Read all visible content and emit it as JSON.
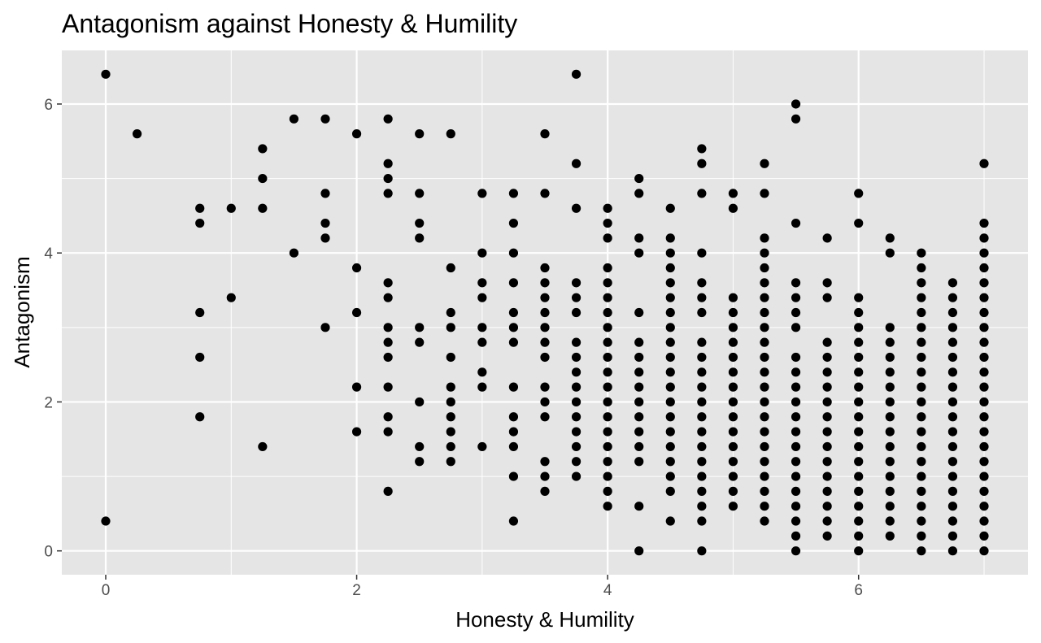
{
  "chart_data": {
    "type": "scatter",
    "title": "Antagonism against Honesty & Humility",
    "xlabel": "Honesty & Humility",
    "ylabel": "Antagonism",
    "xlim": [
      -0.35,
      7.35
    ],
    "ylim": [
      -0.32,
      6.72
    ],
    "x_ticks": [
      0,
      2,
      4,
      6
    ],
    "y_ticks": [
      0,
      2,
      4,
      6
    ],
    "x_tick_labels": [
      "0",
      "2",
      "4",
      "6"
    ],
    "y_tick_labels": [
      "0",
      "2",
      "4",
      "6"
    ],
    "grid": true,
    "colors": {
      "panel": "#e5e5e5",
      "grid": "#ffffff",
      "point": "#000000",
      "tick_text": "#4d4d4d"
    },
    "columns": [
      {
        "x": 0,
        "y": [
          0.4,
          6.4
        ]
      },
      {
        "x": 0.25,
        "y": [
          5.6
        ]
      },
      {
        "x": 0.75,
        "y": [
          1.8,
          2.6,
          3.2,
          4.4,
          4.6
        ]
      },
      {
        "x": 1,
        "y": [
          3.4,
          4.6
        ]
      },
      {
        "x": 1.25,
        "y": [
          1.4,
          4.6,
          5.0,
          5.4
        ]
      },
      {
        "x": 1.5,
        "y": [
          4.0,
          5.8
        ]
      },
      {
        "x": 1.75,
        "y": [
          3.0,
          4.2,
          4.4,
          4.8,
          5.8
        ]
      },
      {
        "x": 2,
        "y": [
          1.6,
          2.2,
          3.2,
          3.8,
          5.6
        ]
      },
      {
        "x": 2.25,
        "y": [
          0.8,
          1.6,
          1.8,
          2.2,
          2.6,
          2.8,
          3.0,
          3.4,
          3.6,
          4.8,
          5.0,
          5.2,
          5.8
        ]
      },
      {
        "x": 2.5,
        "y": [
          1.2,
          1.4,
          2.0,
          2.8,
          3.0,
          4.2,
          4.4,
          4.8,
          5.6
        ]
      },
      {
        "x": 2.75,
        "y": [
          1.2,
          1.4,
          1.6,
          1.8,
          2.0,
          2.2,
          2.6,
          3.0,
          3.2,
          3.8,
          5.6
        ]
      },
      {
        "x": 3,
        "y": [
          1.4,
          2.2,
          2.4,
          2.8,
          3.0,
          3.4,
          3.6,
          4.0,
          4.8
        ]
      },
      {
        "x": 3.25,
        "y": [
          0.4,
          1.0,
          1.4,
          1.6,
          1.8,
          2.2,
          2.8,
          3.0,
          3.2,
          3.6,
          4.0,
          4.4,
          4.8
        ]
      },
      {
        "x": 3.5,
        "y": [
          0.8,
          1.0,
          1.2,
          1.8,
          2.0,
          2.2,
          2.6,
          2.8,
          3.0,
          3.2,
          3.4,
          3.6,
          3.8,
          4.8,
          5.6
        ]
      },
      {
        "x": 3.75,
        "y": [
          1.0,
          1.2,
          1.4,
          1.6,
          1.8,
          2.0,
          2.2,
          2.4,
          2.6,
          2.8,
          3.2,
          3.4,
          3.6,
          4.6,
          5.2,
          6.4
        ]
      },
      {
        "x": 4,
        "y": [
          0.6,
          0.8,
          1.0,
          1.2,
          1.4,
          1.6,
          1.8,
          2.0,
          2.2,
          2.4,
          2.6,
          2.8,
          3.0,
          3.2,
          3.4,
          3.6,
          3.8,
          4.2,
          4.4,
          4.6
        ]
      },
      {
        "x": 4.25,
        "y": [
          0.0,
          0.6,
          1.2,
          1.4,
          1.6,
          1.8,
          2.0,
          2.2,
          2.4,
          2.6,
          2.8,
          3.2,
          4.0,
          4.2,
          4.8,
          5.0
        ]
      },
      {
        "x": 4.5,
        "y": [
          0.4,
          0.8,
          1.0,
          1.2,
          1.4,
          1.6,
          1.8,
          2.0,
          2.2,
          2.4,
          2.6,
          2.8,
          3.0,
          3.2,
          3.4,
          3.6,
          3.8,
          4.0,
          4.2,
          4.6
        ]
      },
      {
        "x": 4.75,
        "y": [
          0.0,
          0.4,
          0.6,
          0.8,
          1.0,
          1.2,
          1.4,
          1.6,
          1.8,
          2.0,
          2.2,
          2.4,
          2.6,
          2.8,
          3.2,
          3.4,
          3.6,
          4.0,
          4.8,
          5.2,
          5.4
        ]
      },
      {
        "x": 5,
        "y": [
          0.6,
          0.8,
          1.0,
          1.2,
          1.4,
          1.6,
          1.8,
          2.0,
          2.2,
          2.4,
          2.6,
          2.8,
          3.0,
          3.2,
          3.4,
          4.6,
          4.8
        ]
      },
      {
        "x": 5.25,
        "y": [
          0.4,
          0.6,
          0.8,
          1.0,
          1.2,
          1.4,
          1.6,
          1.8,
          2.0,
          2.2,
          2.4,
          2.6,
          2.8,
          3.0,
          3.2,
          3.4,
          3.6,
          3.8,
          4.0,
          4.2,
          4.8,
          5.2
        ]
      },
      {
        "x": 5.5,
        "y": [
          0.0,
          0.2,
          0.4,
          0.6,
          0.8,
          1.0,
          1.2,
          1.4,
          1.6,
          1.8,
          2.0,
          2.2,
          2.4,
          2.6,
          3.0,
          3.2,
          3.4,
          3.6,
          4.4,
          5.8,
          6.0
        ]
      },
      {
        "x": 5.75,
        "y": [
          0.2,
          0.4,
          0.6,
          0.8,
          1.0,
          1.2,
          1.4,
          1.6,
          1.8,
          2.0,
          2.2,
          2.4,
          2.6,
          2.8,
          3.4,
          3.6,
          4.2
        ]
      },
      {
        "x": 6,
        "y": [
          0.0,
          0.2,
          0.4,
          0.6,
          0.8,
          1.0,
          1.2,
          1.4,
          1.6,
          1.8,
          2.0,
          2.2,
          2.4,
          2.6,
          2.8,
          3.0,
          3.2,
          3.4,
          4.4,
          4.8
        ]
      },
      {
        "x": 6.25,
        "y": [
          0.2,
          0.4,
          0.6,
          0.8,
          1.0,
          1.2,
          1.4,
          1.6,
          1.8,
          2.0,
          2.2,
          2.4,
          2.6,
          2.8,
          3.0,
          4.0,
          4.2
        ]
      },
      {
        "x": 6.5,
        "y": [
          0.0,
          0.2,
          0.4,
          0.6,
          0.8,
          1.0,
          1.2,
          1.4,
          1.6,
          1.8,
          2.0,
          2.2,
          2.4,
          2.6,
          2.8,
          3.0,
          3.2,
          3.4,
          3.6,
          3.8,
          4.0
        ]
      },
      {
        "x": 6.75,
        "y": [
          0.0,
          0.2,
          0.4,
          0.6,
          0.8,
          1.0,
          1.2,
          1.4,
          1.6,
          1.8,
          2.0,
          2.2,
          2.4,
          2.6,
          2.8,
          3.0,
          3.2,
          3.4,
          3.6
        ]
      },
      {
        "x": 7,
        "y": [
          0.0,
          0.2,
          0.4,
          0.6,
          0.8,
          1.0,
          1.2,
          1.4,
          1.6,
          1.8,
          2.0,
          2.2,
          2.4,
          2.6,
          2.8,
          3.0,
          3.2,
          3.4,
          3.6,
          3.8,
          4.0,
          4.2,
          4.4,
          5.2
        ]
      }
    ]
  }
}
